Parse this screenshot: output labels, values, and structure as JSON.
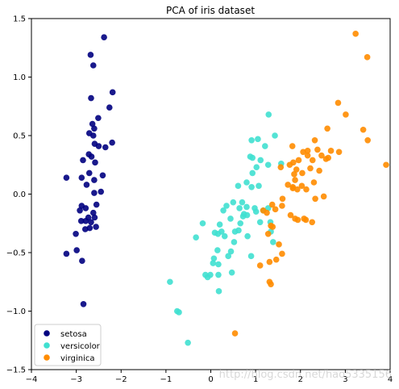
{
  "chart_data": {
    "type": "scatter",
    "title": "PCA of iris dataset",
    "xlabel": "",
    "ylabel": "",
    "xlim": [
      -4,
      4
    ],
    "ylim": [
      -1.5,
      1.5
    ],
    "xticks": [
      "−4",
      "−3",
      "−2",
      "−1",
      "0",
      "1",
      "2",
      "3",
      "4"
    ],
    "yticks": [
      "1.5",
      "1.0",
      "0.5",
      "0.0",
      "−0.5",
      "−1.0",
      "−1.5"
    ],
    "xtick_values": [
      -4,
      -3,
      -2,
      -1,
      0,
      1,
      2,
      3,
      4
    ],
    "ytick_values": [
      1.5,
      1.0,
      0.5,
      0.0,
      -0.5,
      -1.0,
      -1.5
    ],
    "grid": false,
    "legend_position": "bottom-left",
    "series": [
      {
        "name": "setosa",
        "color": "#000080",
        "points": [
          [
            -2.38,
            1.34
          ],
          [
            -2.68,
            1.19
          ],
          [
            -2.62,
            1.1
          ],
          [
            -2.19,
            0.87
          ],
          [
            -2.67,
            0.82
          ],
          [
            -2.26,
            0.74
          ],
          [
            -2.51,
            0.65
          ],
          [
            -2.64,
            0.6
          ],
          [
            -2.6,
            0.56
          ],
          [
            -2.71,
            0.52
          ],
          [
            -2.62,
            0.5
          ],
          [
            -2.2,
            0.44
          ],
          [
            -2.59,
            0.43
          ],
          [
            -2.5,
            0.41
          ],
          [
            -2.35,
            0.4
          ],
          [
            -2.72,
            0.34
          ],
          [
            -2.66,
            0.32
          ],
          [
            -2.85,
            0.29
          ],
          [
            -2.58,
            0.27
          ],
          [
            -2.71,
            0.18
          ],
          [
            -2.41,
            0.16
          ],
          [
            -3.22,
            0.14
          ],
          [
            -2.88,
            0.14
          ],
          [
            -2.6,
            0.12
          ],
          [
            -2.77,
            0.08
          ],
          [
            -2.45,
            0.02
          ],
          [
            -2.6,
            0.01
          ],
          [
            -2.88,
            -0.1
          ],
          [
            -2.55,
            -0.09
          ],
          [
            -2.79,
            -0.12
          ],
          [
            -2.62,
            -0.16
          ],
          [
            -2.92,
            -0.14
          ],
          [
            -2.73,
            -0.2
          ],
          [
            -2.59,
            -0.2
          ],
          [
            -2.89,
            -0.23
          ],
          [
            -2.79,
            -0.23
          ],
          [
            -2.67,
            -0.24
          ],
          [
            -2.8,
            -0.3
          ],
          [
            -3.01,
            -0.34
          ],
          [
            -2.7,
            -0.29
          ],
          [
            -2.56,
            -0.28
          ],
          [
            -3.22,
            -0.51
          ],
          [
            -2.99,
            -0.48
          ],
          [
            -2.87,
            -0.57
          ],
          [
            -2.84,
            -0.94
          ]
        ]
      },
      {
        "name": "versicolor",
        "color": "#40e0d0",
        "points": [
          [
            1.29,
            0.68
          ],
          [
            1.43,
            0.5
          ],
          [
            1.21,
            0.41
          ],
          [
            0.91,
            0.46
          ],
          [
            1.05,
            0.47
          ],
          [
            0.88,
            0.32
          ],
          [
            0.93,
            0.31
          ],
          [
            1.11,
            0.29
          ],
          [
            1.02,
            0.23
          ],
          [
            1.28,
            0.25
          ],
          [
            1.57,
            0.26
          ],
          [
            0.93,
            0.18
          ],
          [
            0.8,
            0.1
          ],
          [
            0.91,
            0.06
          ],
          [
            0.61,
            0.07
          ],
          [
            1.07,
            0.07
          ],
          [
            0.5,
            -0.07
          ],
          [
            0.35,
            -0.1
          ],
          [
            0.7,
            -0.07
          ],
          [
            0.28,
            -0.14
          ],
          [
            0.8,
            -0.11
          ],
          [
            0.98,
            -0.12
          ],
          [
            1.01,
            -0.15
          ],
          [
            1.17,
            -0.14
          ],
          [
            1.28,
            -0.12
          ],
          [
            0.64,
            -0.12
          ],
          [
            0.74,
            -0.17
          ],
          [
            0.81,
            -0.18
          ],
          [
            1.1,
            -0.24
          ],
          [
            1.33,
            -0.24
          ],
          [
            1.34,
            -0.32
          ],
          [
            0.72,
            -0.19
          ],
          [
            0.66,
            -0.25
          ],
          [
            0.44,
            -0.21
          ],
          [
            0.2,
            -0.26
          ],
          [
            -0.18,
            -0.25
          ],
          [
            0.24,
            -0.32
          ],
          [
            0.09,
            -0.33
          ],
          [
            0.16,
            -0.34
          ],
          [
            0.54,
            -0.32
          ],
          [
            0.62,
            -0.31
          ],
          [
            0.31,
            -0.36
          ],
          [
            0.82,
            -0.36
          ],
          [
            1.39,
            -0.41
          ],
          [
            0.52,
            -0.41
          ],
          [
            -0.33,
            -0.37
          ],
          [
            0.9,
            -0.53
          ],
          [
            0.15,
            -0.48
          ],
          [
            0.07,
            -0.55
          ],
          [
            0.45,
            -0.49
          ],
          [
            0.39,
            -0.53
          ],
          [
            0.17,
            -0.6
          ],
          [
            0.05,
            -0.59
          ],
          [
            -0.01,
            -0.69
          ],
          [
            -0.07,
            -0.71
          ],
          [
            -0.12,
            -0.69
          ],
          [
            0.47,
            -0.67
          ],
          [
            0.17,
            -0.69
          ],
          [
            0.18,
            -0.83
          ],
          [
            -0.91,
            -0.75
          ],
          [
            -0.75,
            -1.0
          ],
          [
            -0.71,
            -1.01
          ],
          [
            -0.51,
            -1.27
          ]
        ]
      },
      {
        "name": "virginica",
        "color": "#ff8c00",
        "points": [
          [
            3.23,
            1.37
          ],
          [
            3.49,
            1.17
          ],
          [
            2.84,
            0.78
          ],
          [
            3.01,
            0.68
          ],
          [
            2.6,
            0.56
          ],
          [
            3.4,
            0.55
          ],
          [
            3.5,
            0.46
          ],
          [
            2.32,
            0.46
          ],
          [
            2.06,
            0.36
          ],
          [
            2.38,
            0.38
          ],
          [
            2.16,
            0.37
          ],
          [
            2.68,
            0.37
          ],
          [
            2.62,
            0.31
          ],
          [
            1.82,
            0.41
          ],
          [
            2.86,
            0.36
          ],
          [
            2.16,
            0.33
          ],
          [
            2.47,
            0.33
          ],
          [
            2.57,
            0.3
          ],
          [
            2.27,
            0.29
          ],
          [
            1.96,
            0.29
          ],
          [
            1.84,
            0.27
          ],
          [
            2.22,
            0.22
          ],
          [
            1.91,
            0.21
          ],
          [
            2.42,
            0.2
          ],
          [
            1.56,
            0.23
          ],
          [
            1.76,
            0.25
          ],
          [
            2.04,
            0.18
          ],
          [
            1.86,
            0.17
          ],
          [
            3.91,
            0.25
          ],
          [
            2.3,
            0.1
          ],
          [
            1.88,
            0.12
          ],
          [
            1.72,
            0.08
          ],
          [
            2.03,
            0.07
          ],
          [
            1.83,
            0.06
          ],
          [
            1.83,
            0.05
          ],
          [
            1.93,
            0.04
          ],
          [
            2.13,
            0.04
          ],
          [
            2.52,
            -0.02
          ],
          [
            2.33,
            -0.04
          ],
          [
            1.6,
            -0.04
          ],
          [
            1.37,
            -0.09
          ],
          [
            1.59,
            -0.1
          ],
          [
            1.17,
            -0.14
          ],
          [
            1.44,
            -0.13
          ],
          [
            1.25,
            -0.16
          ],
          [
            1.78,
            -0.18
          ],
          [
            1.88,
            -0.21
          ],
          [
            2.08,
            -0.21
          ],
          [
            2.12,
            -0.22
          ],
          [
            2.26,
            -0.24
          ],
          [
            1.94,
            -0.22
          ],
          [
            1.34,
            -0.27
          ],
          [
            1.38,
            -0.28
          ],
          [
            1.28,
            -0.34
          ],
          [
            1.52,
            -0.43
          ],
          [
            1.59,
            -0.51
          ],
          [
            1.46,
            -0.56
          ],
          [
            1.31,
            -0.58
          ],
          [
            1.1,
            -0.61
          ],
          [
            1.31,
            -0.75
          ],
          [
            1.34,
            -0.77
          ],
          [
            0.54,
            -1.19
          ]
        ]
      }
    ]
  },
  "watermark": "http://blog.csdn.net/hao5335156"
}
